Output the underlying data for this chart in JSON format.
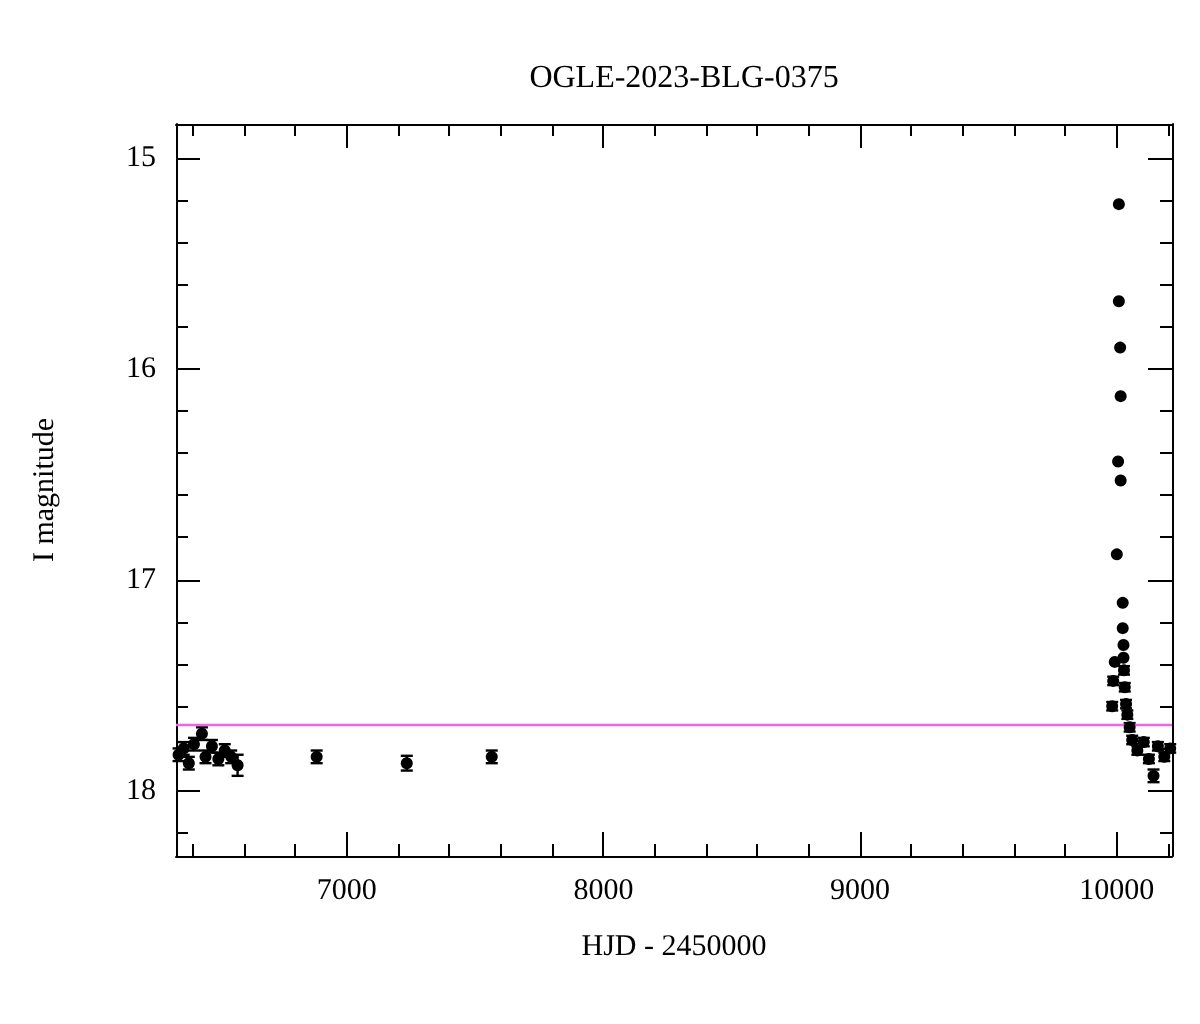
{
  "chart_data": {
    "type": "scatter",
    "title": "OGLE-2023-BLG-0375",
    "xlabel": "HJD - 2450000",
    "ylabel": "I magnitude",
    "marker": "circle",
    "xlim": [
      6335,
      10215
    ],
    "ylim": [
      18.31,
      14.84
    ],
    "xticks": [
      {
        "value": 6400,
        "label": null
      },
      {
        "value": 6600,
        "label": null
      },
      {
        "value": 6800,
        "label": null
      },
      7000,
      {
        "value": 7200,
        "label": null
      },
      {
        "value": 7400,
        "label": null
      },
      {
        "value": 7600,
        "label": null
      },
      {
        "value": 7800,
        "label": null
      },
      8000,
      {
        "value": 8200,
        "label": null
      },
      {
        "value": 8400,
        "label": null
      },
      {
        "value": 8600,
        "label": null
      },
      {
        "value": 8800,
        "label": null
      },
      9000,
      {
        "value": 9200,
        "label": null
      },
      {
        "value": 9400,
        "label": null
      },
      {
        "value": 9600,
        "label": null
      },
      {
        "value": 9800,
        "label": null
      },
      10000,
      {
        "value": 10200,
        "label": null
      }
    ],
    "yticks": [
      15,
      {
        "value": 15.2,
        "label": null
      },
      {
        "value": 15.4,
        "label": null
      },
      {
        "value": 15.6,
        "label": null
      },
      {
        "value": 15.8,
        "label": null
      },
      16,
      {
        "value": 16.2,
        "label": null
      },
      {
        "value": 16.4,
        "label": null
      },
      {
        "value": 16.6,
        "label": null
      },
      {
        "value": 16.8,
        "label": null
      },
      17,
      {
        "value": 17.2,
        "label": null
      },
      {
        "value": 17.4,
        "label": null
      },
      {
        "value": 17.6,
        "label": null
      },
      {
        "value": 17.8,
        "label": null
      },
      18,
      {
        "value": 18.2,
        "label": null
      }
    ],
    "ref_lines": [
      {
        "axis": "y",
        "value": 17.69,
        "color": "#ee66ee",
        "line_style": "solid"
      }
    ],
    "series": [
      {
        "color": "#000000",
        "x": [
          6345,
          6365,
          6385,
          6405,
          6436,
          6450,
          6475,
          6500,
          6525,
          6550,
          6575,
          6883,
          7234,
          7565,
          9982,
          9986,
          9992,
          10000,
          10005,
          10008,
          10008,
          10013,
          10015,
          10015,
          10023,
          10023,
          10026,
          10026,
          10028,
          10031,
          10036,
          10041,
          10050,
          10060,
          10080,
          10105,
          10125,
          10143,
          10160,
          10185,
          10208
        ],
        "values": [
          17.83,
          17.8,
          17.87,
          17.78,
          17.73,
          17.84,
          17.79,
          17.85,
          17.81,
          17.84,
          17.88,
          17.84,
          17.87,
          17.84,
          17.6,
          17.48,
          17.39,
          16.88,
          16.44,
          15.22,
          15.68,
          15.9,
          16.13,
          16.53,
          17.11,
          17.23,
          17.31,
          17.37,
          17.43,
          17.51,
          17.59,
          17.64,
          17.7,
          17.76,
          17.81,
          17.77,
          17.85,
          17.93,
          17.79,
          17.84,
          17.8
        ],
        "errors": [
          0.03,
          0.03,
          0.03,
          0.03,
          0.03,
          0.03,
          0.03,
          0.03,
          0.03,
          0.03,
          0.05,
          0.03,
          0.035,
          0.03,
          0.02,
          0.02,
          null,
          null,
          null,
          null,
          null,
          null,
          null,
          null,
          null,
          null,
          null,
          null,
          0.02,
          0.02,
          0.02,
          0.02,
          0.02,
          0.02,
          0.02,
          0.02,
          0.02,
          0.03,
          0.02,
          0.02,
          0.02
        ]
      }
    ]
  }
}
